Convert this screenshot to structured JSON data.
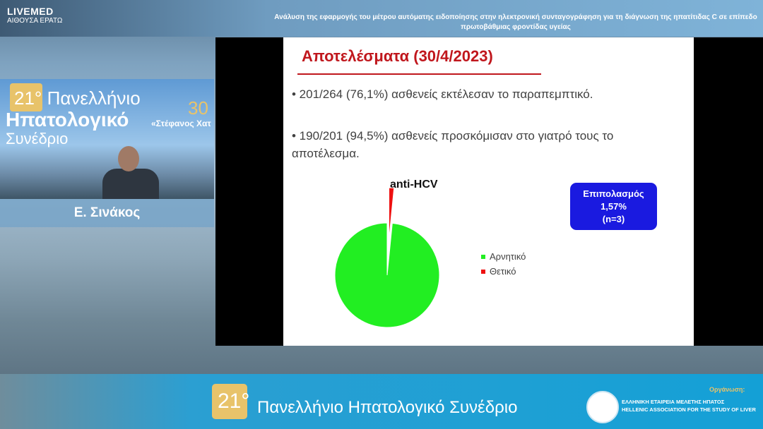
{
  "overlay": {
    "brand_top": "LIVEMED",
    "brand_sub": "ΑΙΘΟΥΣΑ ΕΡΑΤΩ",
    "talk_title": "Ανάλυση της εφαρμογής του μέτρου αυτόματης ειδοποίησης στην ηλεκτρονική συνταγογράφηση για τη  διάγνωση της ηπατίτιδας C σε επίπεδο πρωτοβάθμιας φροντίδας υγείας",
    "speaker_name": "Ε. Σινάκος"
  },
  "camera_backdrop": {
    "num": "21°",
    "line1": "Πανελλήνιο",
    "line2": "Ηπατολογικό",
    "line3": "Συνέδριο",
    "right_num": "30",
    "right_text": "«Στέφανος Χατ"
  },
  "slide": {
    "heading": "Αποτελέσματα (30/4/2023)",
    "bullets": [
      "• 201/264 (76,1%) ασθενείς εκτέλεσαν το παραπεμπτικό.",
      "• 190/201 (94,5%) ασθενείς προσκόμισαν στο γιατρό τους το αποτέλεσμα."
    ],
    "badge": {
      "line1": "Επιπολασμός",
      "line2": "1,57%",
      "line3": "(n=3)"
    }
  },
  "chart_data": {
    "type": "pie",
    "title": "anti-HCV",
    "legend_position": "right",
    "labels": [
      "Αρνητικό",
      "Θετικό"
    ],
    "values": [
      98.43,
      1.57
    ],
    "colors": [
      "#22ee22",
      "#ee1111"
    ],
    "exploded": [
      "Θετικό"
    ]
  },
  "footer": {
    "num": "21°",
    "text": "Πανελλήνιο Ηπατολογικό Συνέδριο",
    "organizer_label": "Οργάνωση:",
    "assoc_gr": "ΕΛΛΗΝΙΚΗ ΕΤΑΙΡΕΙΑ ΜΕΛΕΤΗΣ ΗΠΑΤΟΣ",
    "assoc_en": "HELLENIC ASSOCIATION FOR THE STUDY OF LIVER",
    "seal_text": "ΕΕΜΗ"
  }
}
